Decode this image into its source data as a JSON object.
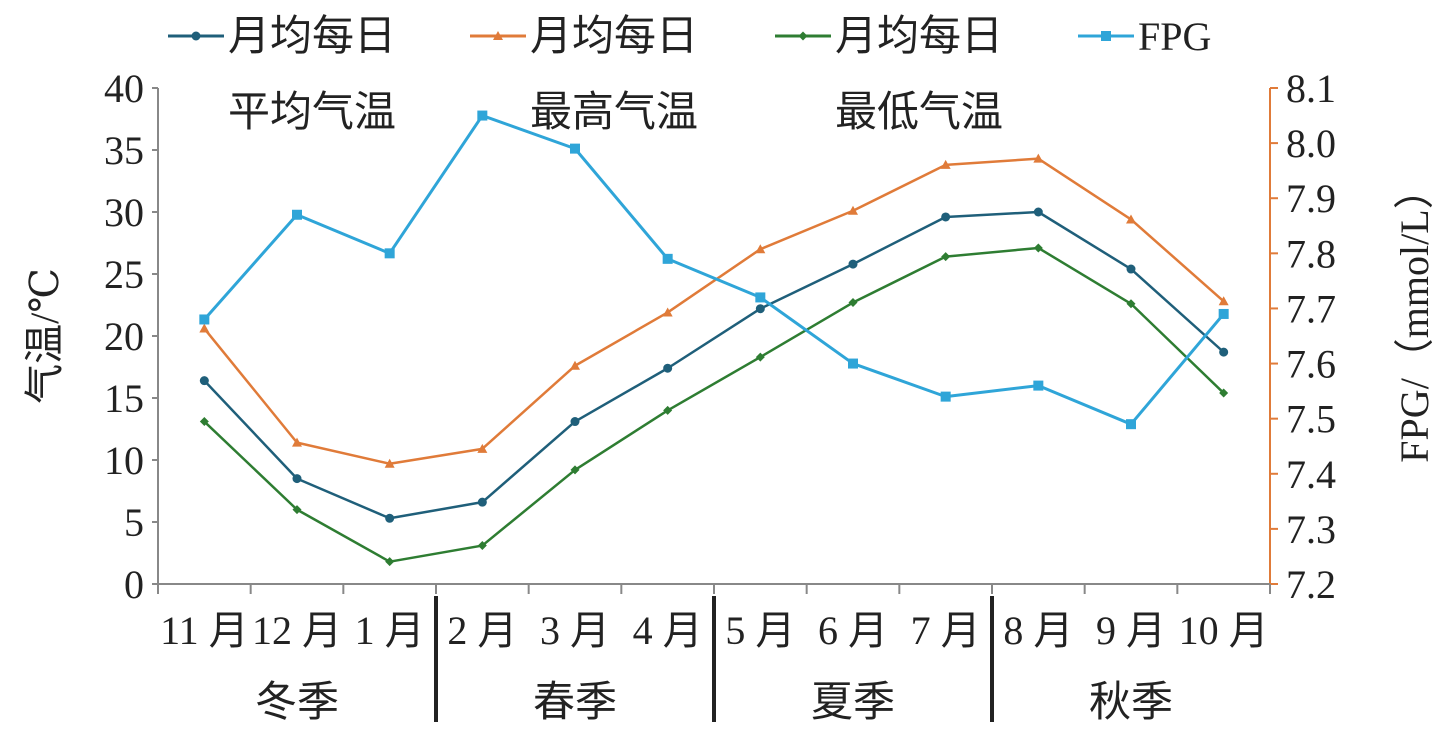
{
  "chart_data": {
    "type": "line",
    "categories": [
      "11 月",
      "12 月",
      "1 月",
      "2 月",
      "3 月",
      "4 月",
      "5 月",
      "6 月",
      "7 月",
      "8 月",
      "9 月",
      "10 月"
    ],
    "seasons": [
      "冬季",
      "春季",
      "夏季",
      "秋季"
    ],
    "ylabel": "气温/℃",
    "y2label": "FPG/（mmol/L）",
    "ylim": [
      0,
      40
    ],
    "yticks": [
      0,
      5,
      10,
      15,
      20,
      25,
      30,
      35,
      40
    ],
    "y2lim": [
      7.2,
      8.1
    ],
    "y2ticks": [
      "7.2",
      "7.3",
      "7.4",
      "7.5",
      "7.6",
      "7.7",
      "7.8",
      "7.9",
      "8.0",
      "8.1"
    ],
    "legend_position": "top",
    "series": [
      {
        "name": "月均每日平均气温",
        "legend_line1": "月均每日",
        "legend_line2": "平均气温",
        "axis": "left",
        "color": "#1f5f7a",
        "marker": "circle",
        "values": [
          16.4,
          8.5,
          5.3,
          6.6,
          13.1,
          17.4,
          22.2,
          25.8,
          29.6,
          30.0,
          25.4,
          18.7
        ]
      },
      {
        "name": "月均每日最高气温",
        "legend_line1": "月均每日",
        "legend_line2": "最高气温",
        "axis": "left",
        "color": "#e07b39",
        "marker": "triangle",
        "values": [
          20.6,
          11.4,
          9.7,
          10.9,
          17.6,
          21.9,
          27.0,
          30.1,
          33.8,
          34.3,
          29.4,
          22.8
        ]
      },
      {
        "name": "月均每日最低气温",
        "legend_line1": "月均每日",
        "legend_line2": "最低气温",
        "axis": "left",
        "color": "#2e7d32",
        "marker": "diamond",
        "values": [
          13.1,
          6.0,
          1.8,
          3.1,
          9.2,
          14.0,
          18.3,
          22.7,
          26.4,
          27.1,
          22.6,
          15.4
        ]
      },
      {
        "name": "FPG",
        "legend_line1": "FPG",
        "legend_line2": "",
        "axis": "right",
        "color": "#2fa5d8",
        "marker": "square",
        "values": [
          7.68,
          7.87,
          7.8,
          8.05,
          7.99,
          7.79,
          7.72,
          7.6,
          7.54,
          7.56,
          7.49,
          7.69
        ]
      }
    ]
  }
}
